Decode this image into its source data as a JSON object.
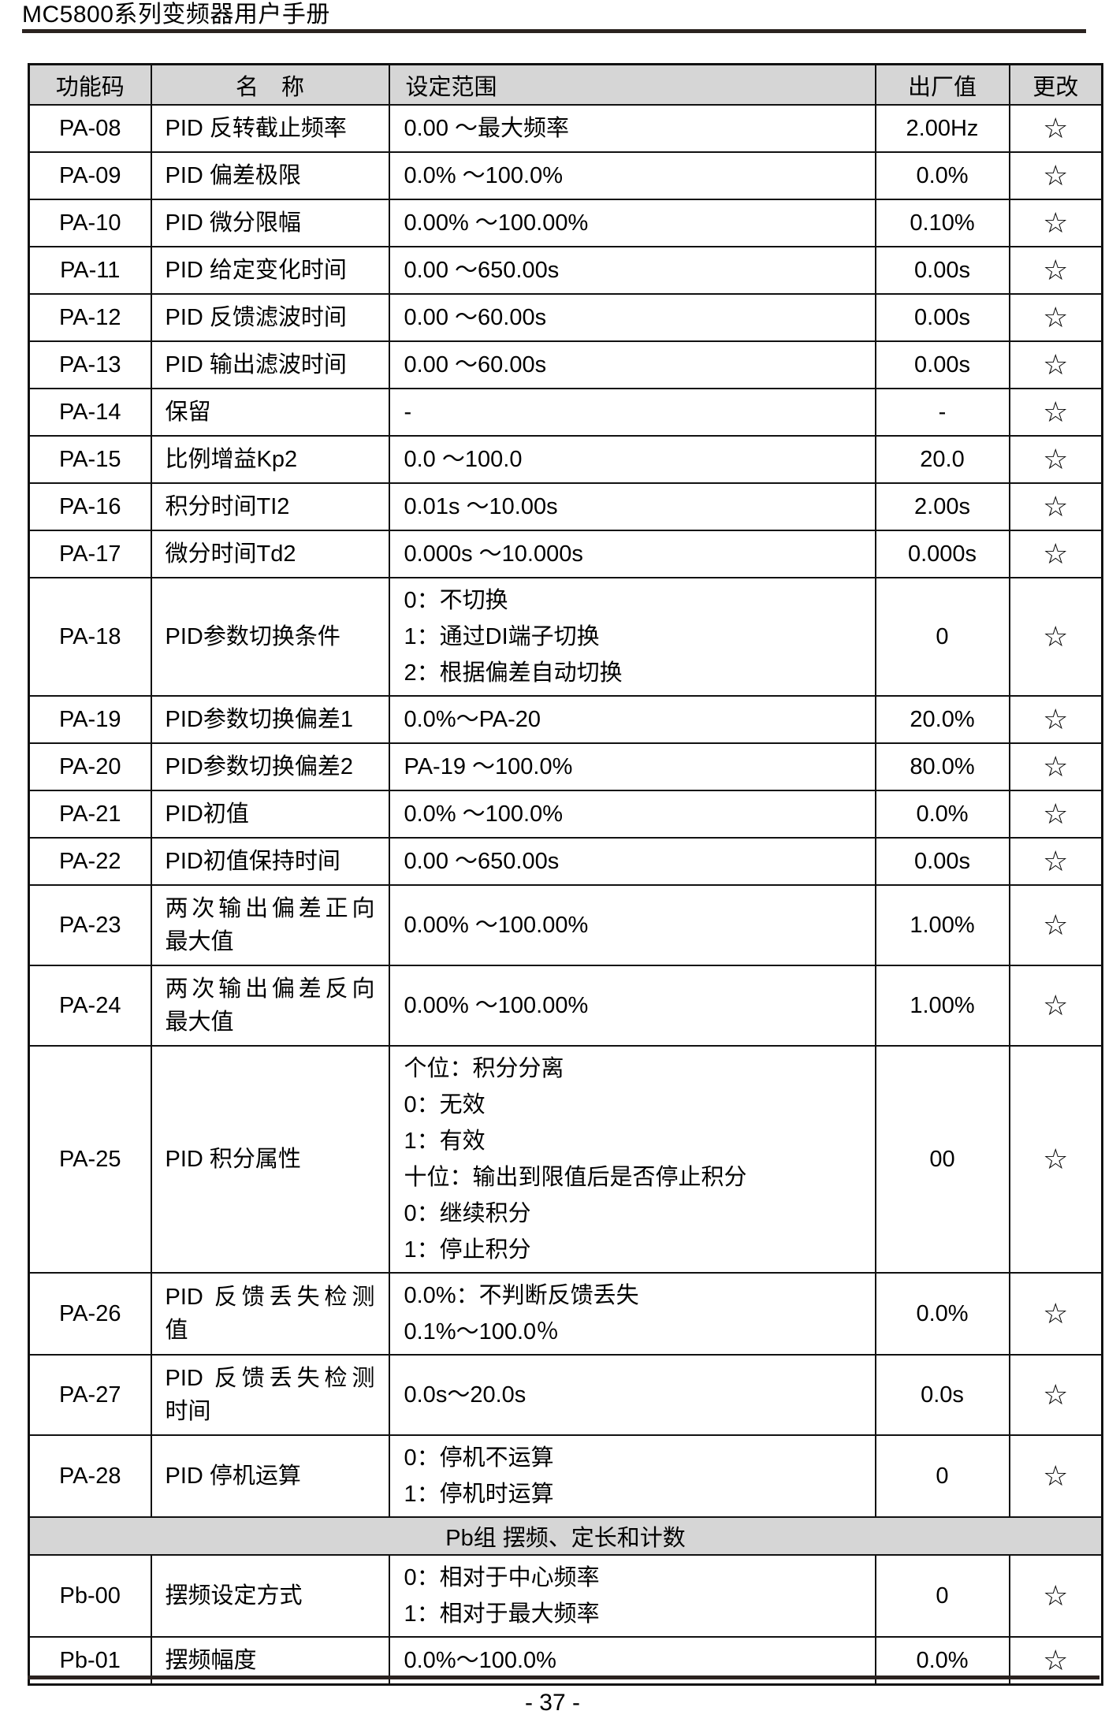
{
  "page": {
    "header_title": "MC5800系列变频器用户手册",
    "page_number": "- 37 -"
  },
  "colors": {
    "header_bg": "#d6d6d6",
    "border": "#111111",
    "rule": "#2b2320",
    "text": "#000000"
  },
  "table": {
    "columns": [
      "功能码",
      "名　称",
      "设定范围",
      "出厂值",
      "更改"
    ],
    "change_symbol": "☆",
    "rows": [
      {
        "code": "PA-08",
        "name": [
          "PID 反转截止频率"
        ],
        "range": [
          "0.00 ～最大频率"
        ],
        "value": "2.00Hz",
        "change": "☆"
      },
      {
        "code": "PA-09",
        "name": [
          "PID 偏差极限"
        ],
        "range": [
          "0.0% ～100.0%"
        ],
        "value": "0.0%",
        "change": "☆"
      },
      {
        "code": "PA-10",
        "name": [
          "PID 微分限幅"
        ],
        "range": [
          "0.00% ～100.00%"
        ],
        "value": "0.10%",
        "change": "☆"
      },
      {
        "code": "PA-11",
        "name": [
          "PID 给定变化时间"
        ],
        "range": [
          "0.00 ～650.00s"
        ],
        "value": "0.00s",
        "change": "☆"
      },
      {
        "code": "PA-12",
        "name": [
          "PID 反馈滤波时间"
        ],
        "range": [
          "0.00 ～60.00s"
        ],
        "value": "0.00s",
        "change": "☆"
      },
      {
        "code": "PA-13",
        "name": [
          "PID 输出滤波时间"
        ],
        "range": [
          "0.00 ～60.00s"
        ],
        "value": "0.00s",
        "change": "☆"
      },
      {
        "code": "PA-14",
        "name": [
          "保留"
        ],
        "range": [
          "-"
        ],
        "value": "-",
        "change": "☆"
      },
      {
        "code": "PA-15",
        "name": [
          "比例增益Kp2"
        ],
        "range": [
          "0.0 ～100.0"
        ],
        "value": "20.0",
        "change": "☆"
      },
      {
        "code": "PA-16",
        "name": [
          "积分时间TI2"
        ],
        "range": [
          "0.01s ～10.00s"
        ],
        "value": "2.00s",
        "change": "☆"
      },
      {
        "code": "PA-17",
        "name": [
          "微分时间Td2"
        ],
        "range": [
          "0.000s ～10.000s"
        ],
        "value": "0.000s",
        "change": "☆"
      },
      {
        "code": "PA-18",
        "name": [
          "PID参数切换条件"
        ],
        "range": [
          "0：不切换",
          "1：通过DI端子切换",
          "2：根据偏差自动切换"
        ],
        "value": "0",
        "change": "☆"
      },
      {
        "code": "PA-19",
        "name": [
          "PID参数切换偏差1"
        ],
        "range": [
          "0.0%～PA-20"
        ],
        "value": "20.0%",
        "change": "☆"
      },
      {
        "code": "PA-20",
        "name": [
          "PID参数切换偏差2"
        ],
        "range": [
          "PA-19 ～100.0%"
        ],
        "value": "80.0%",
        "change": "☆"
      },
      {
        "code": "PA-21",
        "name": [
          "PID初值"
        ],
        "range": [
          "0.0% ～100.0%"
        ],
        "value": "0.0%",
        "change": "☆"
      },
      {
        "code": "PA-22",
        "name": [
          "PID初值保持时间"
        ],
        "range": [
          "0.00 ～650.00s"
        ],
        "value": "0.00s",
        "change": "☆"
      },
      {
        "code": "PA-23",
        "name": [
          "两次输出偏差正向",
          "最大值"
        ],
        "range": [
          "0.00% ～100.00%"
        ],
        "value": "1.00%",
        "change": "☆"
      },
      {
        "code": "PA-24",
        "name": [
          "两次输出偏差反向",
          "最大值"
        ],
        "range": [
          "0.00% ～100.00%"
        ],
        "value": "1.00%",
        "change": "☆"
      },
      {
        "code": "PA-25",
        "name": [
          "PID 积分属性"
        ],
        "range": [
          "个位：积分分离",
          "0：无效",
          "1：有效",
          "十位：输出到限值后是否停止积分",
          "0：继续积分",
          "1：停止积分"
        ],
        "value": "00",
        "change": "☆"
      },
      {
        "code": "PA-26",
        "name": [
          "PID 反馈丢失检测",
          "值"
        ],
        "range": [
          "0.0%：不判断反馈丢失",
          "0.1%～100.0％"
        ],
        "value": "0.0%",
        "change": "☆"
      },
      {
        "code": "PA-27",
        "name": [
          "PID 反馈丢失检测",
          "时间"
        ],
        "range": [
          "0.0s～20.0s"
        ],
        "value": "0.0s",
        "change": "☆"
      },
      {
        "code": "PA-28",
        "name": [
          "PID 停机运算"
        ],
        "range": [
          "0：停机不运算",
          "1：停机时运算"
        ],
        "value": "0",
        "change": "☆"
      },
      {
        "section": "Pb组 摆频、定长和计数"
      },
      {
        "code": "Pb-00",
        "name": [
          "摆频设定方式"
        ],
        "range": [
          "0：相对于中心频率",
          "1：相对于最大频率"
        ],
        "value": "0",
        "change": "☆"
      },
      {
        "code": "Pb-01",
        "name": [
          "摆频幅度"
        ],
        "range": [
          "0.0%～100.0%"
        ],
        "value": "0.0%",
        "change": "☆"
      }
    ]
  }
}
